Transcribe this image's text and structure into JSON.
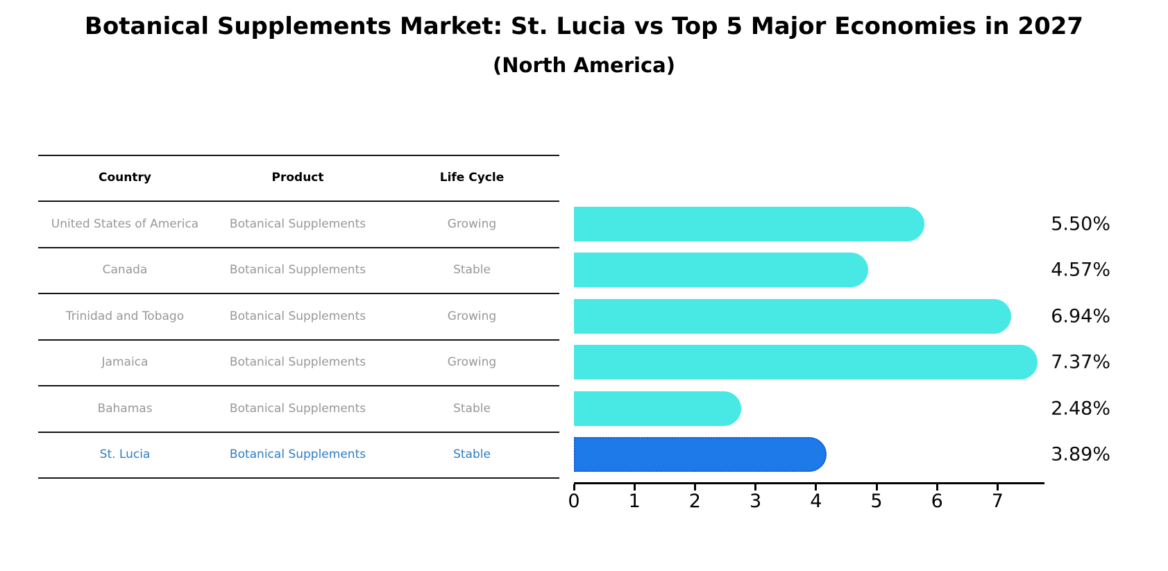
{
  "header": {
    "title": "Botanical Supplements Market: St. Lucia vs Top 5 Major Economies in 2027",
    "subtitle": "(North America)"
  },
  "table": {
    "columns": [
      "Country",
      "Product",
      "Life Cycle"
    ],
    "rows": [
      {
        "country": "United States of America",
        "product": "Botanical Supplements",
        "life_cycle": "Growing",
        "value_label": "5.50%",
        "highlight": false
      },
      {
        "country": "Canada",
        "product": "Botanical Supplements",
        "life_cycle": "Stable",
        "value_label": "4.57%",
        "highlight": false
      },
      {
        "country": "Trinidad and Tobago",
        "product": "Botanical Supplements",
        "life_cycle": "Growing",
        "value_label": "6.94%",
        "highlight": false
      },
      {
        "country": "Jamaica",
        "product": "Botanical Supplements",
        "life_cycle": "Growing",
        "value_label": "7.37%",
        "highlight": false
      },
      {
        "country": "Bahamas",
        "product": "Botanical Supplements",
        "life_cycle": "Stable",
        "value_label": "2.48%",
        "highlight": false
      },
      {
        "country": "St. Lucia",
        "product": "Botanical Supplements",
        "life_cycle": "Stable",
        "value_label": "3.89%",
        "highlight": true
      }
    ]
  },
  "chart_data": {
    "type": "bar",
    "orientation": "horizontal",
    "title": "Botanical Supplements Market: St. Lucia vs Top 5 Major Economies in 2027",
    "subtitle": "(North America)",
    "categories": [
      "United States of America",
      "Canada",
      "Trinidad and Tobago",
      "Jamaica",
      "Bahamas",
      "St. Lucia"
    ],
    "values": [
      5.5,
      4.57,
      6.94,
      7.37,
      2.48,
      3.89
    ],
    "value_labels": [
      "5.50%",
      "4.57%",
      "6.94%",
      "7.37%",
      "2.48%",
      "3.89%"
    ],
    "x_ticks": [
      0,
      1,
      2,
      3,
      4,
      5,
      6,
      7
    ],
    "xlim": [
      0,
      7.77
    ],
    "grid": false,
    "legend": false,
    "highlight_category": "St. Lucia",
    "colors": {
      "bar": "#48E9E4",
      "highlight_bar": "#1E7AE8",
      "highlight_bar_border": "#0D5BD0",
      "highlight_text": "#2E7DC1",
      "row_text": "#979797",
      "header_text": "#000000"
    }
  }
}
